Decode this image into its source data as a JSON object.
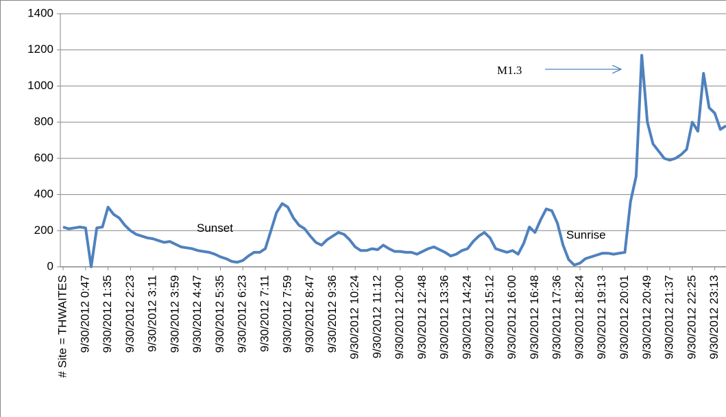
{
  "chart_data": {
    "type": "line",
    "categories": [
      "# Site = THWAITES",
      null,
      null,
      null,
      "9/30/2012 0:47",
      null,
      null,
      null,
      "9/30/2012 1:35",
      null,
      null,
      null,
      "9/30/2012 2:23",
      null,
      null,
      null,
      "9/30/2012 3:11",
      null,
      null,
      null,
      "9/30/2012 3:59",
      null,
      null,
      null,
      "9/30/2012 4:47",
      null,
      null,
      null,
      "9/30/2012 5:35",
      null,
      null,
      null,
      "9/30/2012 6:23",
      null,
      null,
      null,
      "9/30/2012 7:11",
      null,
      null,
      null,
      "9/30/2012 7:59",
      null,
      null,
      null,
      "9/30/2012 8:47",
      null,
      null,
      null,
      "9/30/2012 9:36",
      null,
      null,
      null,
      "9/30/2012 10:24",
      null,
      null,
      null,
      "9/30/2012 11:12",
      null,
      null,
      null,
      "9/30/2012 12:00",
      null,
      null,
      null,
      "9/30/2012 12:48",
      null,
      null,
      null,
      "9/30/2012 13:36",
      null,
      null,
      null,
      "9/30/2012 14:24",
      null,
      null,
      null,
      "9/30/2012 15:12",
      null,
      null,
      null,
      "9/30/2012 16:00",
      null,
      null,
      null,
      "9/30/2012 16:48",
      null,
      null,
      null,
      "9/30/2012 17:36",
      null,
      null,
      null,
      "9/30/2012 18:24",
      null,
      null,
      null,
      "9/30/2012 19:13",
      null,
      null,
      null,
      "9/30/2012 20:01",
      null,
      null,
      null,
      "9/30/2012 20:49",
      null,
      null,
      null,
      "9/30/2012 21:37",
      null,
      null,
      null,
      "9/30/2012 22:25",
      null,
      null,
      null,
      "9/30/2012 23:13",
      null,
      null
    ],
    "values": [
      220,
      210,
      215,
      220,
      215,
      0,
      215,
      220,
      330,
      290,
      270,
      230,
      200,
      180,
      170,
      160,
      155,
      145,
      135,
      140,
      125,
      110,
      105,
      100,
      90,
      85,
      80,
      70,
      55,
      45,
      30,
      25,
      35,
      60,
      80,
      80,
      100,
      200,
      300,
      350,
      330,
      270,
      230,
      210,
      170,
      135,
      120,
      150,
      170,
      190,
      180,
      150,
      110,
      90,
      90,
      100,
      95,
      120,
      100,
      85,
      85,
      80,
      80,
      70,
      85,
      100,
      110,
      95,
      80,
      60,
      70,
      90,
      100,
      140,
      170,
      190,
      160,
      100,
      90,
      80,
      90,
      70,
      130,
      220,
      190,
      260,
      320,
      310,
      240,
      120,
      40,
      10,
      20,
      45,
      55,
      65,
      75,
      75,
      70,
      75,
      80,
      360,
      500,
      1170,
      800,
      680,
      640,
      600,
      590,
      600,
      620,
      650,
      800,
      750,
      1070,
      880,
      850,
      760,
      780
    ],
    "color": "#4f81bd",
    "ylim": [
      0,
      1400
    ],
    "yticks": [
      0,
      200,
      400,
      600,
      800,
      1000,
      1200,
      1400
    ],
    "grid": true,
    "annotations": [
      {
        "text": "Sunset"
      },
      {
        "text": "Sunrise"
      },
      {
        "text": "M1.3"
      }
    ]
  }
}
